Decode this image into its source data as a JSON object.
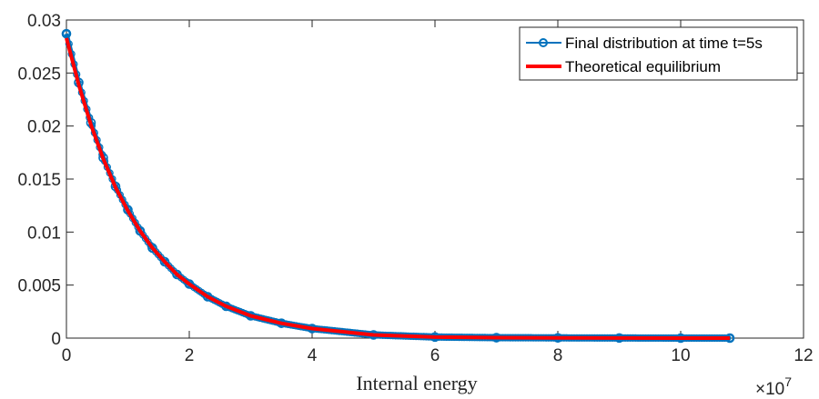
{
  "chart_data": {
    "type": "line",
    "title": "",
    "xlabel": "Internal energy",
    "ylabel": "",
    "x_exponent_label": "×10",
    "x_exponent_power": "7",
    "xlim": [
      0,
      12
    ],
    "ylim": [
      0,
      0.03
    ],
    "xticks": [
      0,
      2,
      4,
      6,
      8,
      10,
      12
    ],
    "xtick_labels": [
      "0",
      "2",
      "4",
      "6",
      "8",
      "10",
      "12"
    ],
    "yticks": [
      0,
      0.005,
      0.01,
      0.015,
      0.02,
      0.025,
      0.03
    ],
    "ytick_labels": [
      "0",
      "0.005",
      "0.01",
      "0.015",
      "0.02",
      "0.025",
      "0.03"
    ],
    "grid": false,
    "legend_position": "top-right",
    "series": [
      {
        "name": "Final distribution at time t=5s",
        "color": "#0072BD",
        "marker": "circle",
        "x": [
          0.0,
          0.2,
          0.4,
          0.6,
          0.8,
          1.0,
          1.2,
          1.4,
          1.6,
          1.8,
          2.0,
          2.3,
          2.6,
          3.0,
          3.5,
          4.0,
          5.0,
          6.0,
          7.0,
          8.0,
          9.0,
          10.0,
          10.8
        ],
        "y": [
          0.0287,
          0.0241,
          0.0203,
          0.017,
          0.0143,
          0.0121,
          0.0101,
          0.0085,
          0.0072,
          0.006,
          0.0051,
          0.0039,
          0.003,
          0.0021,
          0.0014,
          0.0009,
          0.0003,
          0.0001,
          4e-05,
          2e-05,
          1e-05,
          0.0,
          0.0
        ]
      },
      {
        "name": "Theoretical equilibrium",
        "color": "#FF0000",
        "x": [
          0.0,
          0.2,
          0.4,
          0.6,
          0.8,
          1.0,
          1.2,
          1.4,
          1.6,
          1.8,
          2.0,
          2.3,
          2.6,
          3.0,
          3.5,
          4.0,
          5.0,
          6.0,
          7.0,
          8.0,
          9.0,
          10.0,
          10.8
        ],
        "y": [
          0.0283,
          0.0239,
          0.0201,
          0.0169,
          0.0142,
          0.012,
          0.0101,
          0.0085,
          0.0072,
          0.006,
          0.0051,
          0.0039,
          0.003,
          0.0021,
          0.0014,
          0.0009,
          0.0003,
          0.0001,
          4e-05,
          2e-05,
          1e-05,
          0.0,
          0.0
        ]
      }
    ]
  }
}
